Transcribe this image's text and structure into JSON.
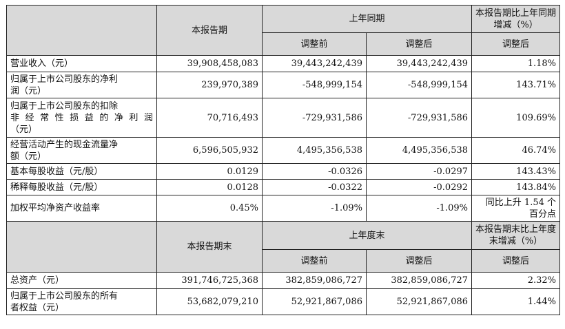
{
  "section1": {
    "current_period": "本报告期",
    "prior_period": "上年同期",
    "change": "本报告期比上年同期增减（%）",
    "before_adj": "调整前",
    "after_adj": "调整后",
    "change_after_adj": "调整后"
  },
  "rows": [
    {
      "label": "营业收入（元）",
      "current": "39,908,458,083",
      "before": "39,443,242,439",
      "after": "39,443,242,439",
      "change": "1.18%"
    },
    {
      "label_line1": "归属于上市公司股东的净利",
      "label_line2": "润（元）",
      "current": "239,970,389",
      "before": "-548,999,154",
      "after": "-548,999,154",
      "change": "143.71%"
    },
    {
      "label_line1": "归属于上市公司股东的扣除",
      "label_line2": "非经常性损益的净利润",
      "label_line3": "（元）",
      "current": "70,716,493",
      "before": "-729,931,586",
      "after": "-729,931,586",
      "change": "109.69%"
    },
    {
      "label_line1": "经营活动产生的现金流量净",
      "label_line2": "额（元）",
      "current": "6,596,505,932",
      "before": "4,495,356,538",
      "after": "4,495,356,538",
      "change": "46.74%"
    },
    {
      "label": "基本每股收益（元/股）",
      "current": "0.0129",
      "before": "-0.0326",
      "after": "-0.0297",
      "change": "143.43%"
    },
    {
      "label": "稀释每股收益（元/股）",
      "current": "0.0128",
      "before": "-0.0322",
      "after": "-0.0292",
      "change": "143.84%"
    },
    {
      "label": "加权平均净资产收益率",
      "current": "0.45%",
      "before": "-1.09%",
      "after": "-1.09%",
      "change_line1": "同比上升 1.54 个",
      "change_line2": "百分点"
    }
  ],
  "section2": {
    "current_period_end": "本报告期末",
    "prior_year_end": "上年度末",
    "change": "本报告期末比上年度末增减（%）",
    "before_adj": "调整前",
    "after_adj": "调整后",
    "change_after_adj": "调整后"
  },
  "rows2": [
    {
      "label": "总资产（元）",
      "current": "391,746,725,368",
      "before": "382,859,086,727",
      "after": "382,859,086,727",
      "change": "2.32%"
    },
    {
      "label_line1": "归属于上市公司股东的所有",
      "label_line2": "者权益（元）",
      "current": "53,682,079,210",
      "before": "52,921,867,086",
      "after": "52,921,867,086",
      "change": "1.44%"
    }
  ]
}
